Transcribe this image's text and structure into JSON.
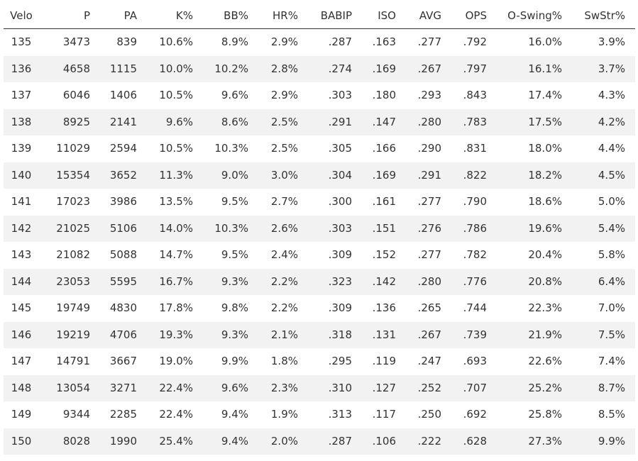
{
  "table": {
    "headers": [
      "Velo",
      "P",
      "PA",
      "K%",
      "BB%",
      "HR%",
      "BABIP",
      "ISO",
      "AVG",
      "OPS",
      "O-Swing%",
      "SwStr%"
    ],
    "rows": [
      [
        "135",
        "3473",
        "839",
        "10.6%",
        "8.9%",
        "2.9%",
        ".287",
        ".163",
        ".277",
        ".792",
        "16.0%",
        "3.9%"
      ],
      [
        "136",
        "4658",
        "1115",
        "10.0%",
        "10.2%",
        "2.8%",
        ".274",
        ".169",
        ".267",
        ".797",
        "16.1%",
        "3.7%"
      ],
      [
        "137",
        "6046",
        "1406",
        "10.5%",
        "9.6%",
        "2.9%",
        ".303",
        ".180",
        ".293",
        ".843",
        "17.4%",
        "4.3%"
      ],
      [
        "138",
        "8925",
        "2141",
        "9.6%",
        "8.6%",
        "2.5%",
        ".291",
        ".147",
        ".280",
        ".783",
        "17.5%",
        "4.2%"
      ],
      [
        "139",
        "11029",
        "2594",
        "10.5%",
        "10.3%",
        "2.5%",
        ".305",
        ".166",
        ".290",
        ".831",
        "18.0%",
        "4.4%"
      ],
      [
        "140",
        "15354",
        "3652",
        "11.3%",
        "9.0%",
        "3.0%",
        ".304",
        ".169",
        ".291",
        ".822",
        "18.2%",
        "4.5%"
      ],
      [
        "141",
        "17023",
        "3986",
        "13.5%",
        "9.5%",
        "2.7%",
        ".300",
        ".161",
        ".277",
        ".790",
        "18.6%",
        "5.0%"
      ],
      [
        "142",
        "21025",
        "5106",
        "14.0%",
        "10.3%",
        "2.6%",
        ".303",
        ".151",
        ".276",
        ".786",
        "19.6%",
        "5.4%"
      ],
      [
        "143",
        "21082",
        "5088",
        "14.7%",
        "9.5%",
        "2.4%",
        ".309",
        ".152",
        ".277",
        ".782",
        "20.4%",
        "5.8%"
      ],
      [
        "144",
        "23053",
        "5595",
        "16.7%",
        "9.3%",
        "2.2%",
        ".323",
        ".142",
        ".280",
        ".776",
        "20.8%",
        "6.4%"
      ],
      [
        "145",
        "19749",
        "4830",
        "17.8%",
        "9.8%",
        "2.2%",
        ".309",
        ".136",
        ".265",
        ".744",
        "22.3%",
        "7.0%"
      ],
      [
        "146",
        "19219",
        "4706",
        "19.3%",
        "9.3%",
        "2.1%",
        ".318",
        ".131",
        ".267",
        ".739",
        "21.9%",
        "7.5%"
      ],
      [
        "147",
        "14791",
        "3667",
        "19.0%",
        "9.9%",
        "1.8%",
        ".295",
        ".119",
        ".247",
        ".693",
        "22.6%",
        "7.4%"
      ],
      [
        "148",
        "13054",
        "3271",
        "22.4%",
        "9.6%",
        "2.3%",
        ".310",
        ".127",
        ".252",
        ".707",
        "25.2%",
        "8.7%"
      ],
      [
        "149",
        "9344",
        "2285",
        "22.4%",
        "9.4%",
        "1.9%",
        ".313",
        ".117",
        ".250",
        ".692",
        "25.8%",
        "8.5%"
      ],
      [
        "150",
        "8028",
        "1990",
        "25.4%",
        "9.4%",
        "2.0%",
        ".287",
        ".106",
        ".222",
        ".628",
        "27.3%",
        "9.9%"
      ]
    ]
  }
}
